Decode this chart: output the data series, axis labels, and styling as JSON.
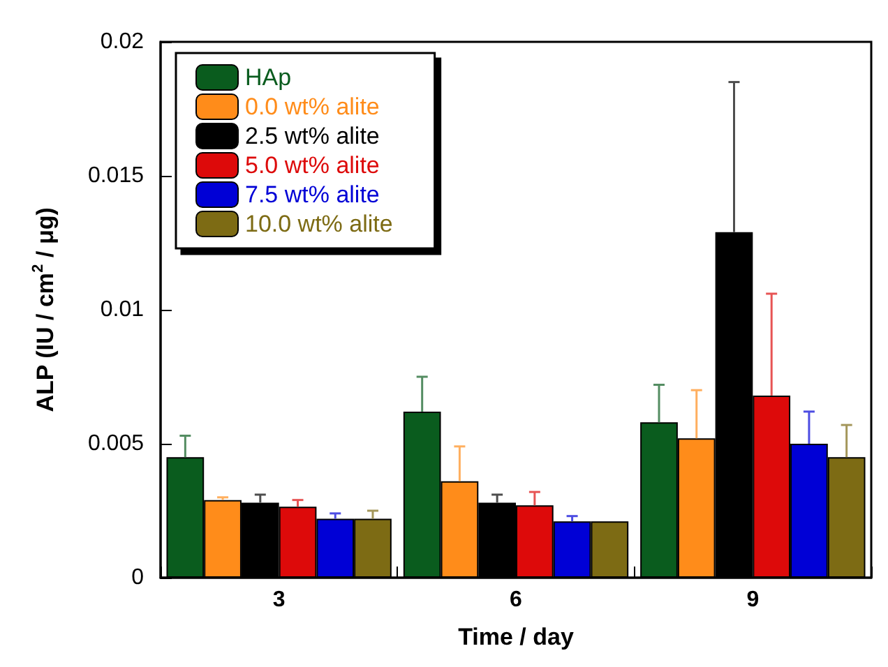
{
  "chart_data": {
    "type": "bar",
    "xlabel": "Time / day",
    "ylabel": "ALP (IU / cm$^{2}$ / μg)",
    "categories": [
      "3",
      "6",
      "9"
    ],
    "series": [
      {
        "name": "HAp",
        "color": "#0a5c1e",
        "values": [
          0.0045,
          0.0062,
          0.0058
        ],
        "errors": [
          [
            0.0045,
            0.0053
          ],
          [
            0.0062,
            0.0075
          ],
          [
            0.0058,
            0.0072
          ]
        ]
      },
      {
        "name": "0.0 wt% alite",
        "color": "#ff8c1a",
        "values": [
          0.0029,
          0.0036,
          0.0052
        ],
        "errors": [
          [
            0.0029,
            0.003
          ],
          [
            0.0036,
            0.0049
          ],
          [
            0.0052,
            0.007
          ]
        ]
      },
      {
        "name": "2.5 wt% alite",
        "color": "#000000",
        "values": [
          0.0028,
          0.0028,
          0.0129
        ],
        "errors": [
          [
            0.0028,
            0.0031
          ],
          [
            0.0028,
            0.0031
          ],
          [
            0.0129,
            0.0185
          ]
        ]
      },
      {
        "name": "5.0 wt% alite",
        "color": "#dd0a0a",
        "values": [
          0.00265,
          0.0027,
          0.0068
        ],
        "errors": [
          [
            0.00265,
            0.0029
          ],
          [
            0.0027,
            0.0032
          ],
          [
            0.0068,
            0.0106
          ]
        ]
      },
      {
        "name": "7.5 wt% alite",
        "color": "#0000d6",
        "values": [
          0.0022,
          0.0021,
          0.005
        ],
        "errors": [
          [
            0.0022,
            0.0024
          ],
          [
            0.0021,
            0.0023
          ],
          [
            0.005,
            0.0062
          ]
        ]
      },
      {
        "name": "10.0 wt% alite",
        "color": "#7d6b14",
        "values": [
          0.0022,
          0.0021,
          0.0045
        ],
        "errors": [
          [
            0.0022,
            0.0025
          ],
          null,
          [
            0.0045,
            0.0057
          ]
        ]
      }
    ],
    "ylim": [
      0,
      0.02
    ],
    "yticks": [
      0,
      0.005,
      0.01,
      0.015,
      0.02
    ],
    "grid": false,
    "legend": "top left"
  }
}
